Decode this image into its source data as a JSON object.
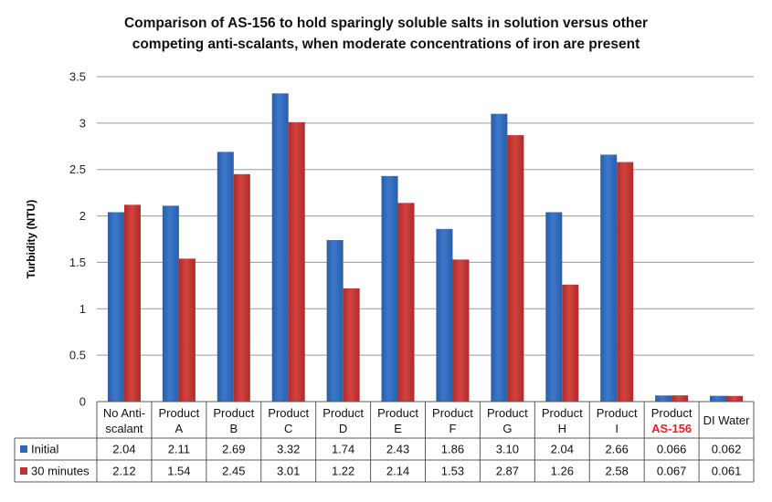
{
  "chart_data": {
    "type": "bar",
    "title_lines": [
      "Comparison of AS-156 to hold sparingly soluble salts in solution versus other",
      "competing anti-scalants, when moderate concentrations of iron are present"
    ],
    "ylabel": "Turbidity (NTU)",
    "ylim": [
      0,
      3.5
    ],
    "yticks": [
      0,
      0.5,
      1,
      1.5,
      2,
      2.5,
      3,
      3.5
    ],
    "ytick_labels": [
      "0",
      "0.5",
      "1",
      "1.5",
      "2",
      "2.5",
      "3",
      "3.5"
    ],
    "grid": true,
    "legend": "data-table",
    "categories": [
      {
        "line1": "No Anti-",
        "line2": "scalant"
      },
      {
        "line1": "Product",
        "line2": "A"
      },
      {
        "line1": "Product",
        "line2": "B"
      },
      {
        "line1": "Product",
        "line2": "C"
      },
      {
        "line1": "Product",
        "line2": "D"
      },
      {
        "line1": "Product",
        "line2": "E"
      },
      {
        "line1": "Product",
        "line2": "F"
      },
      {
        "line1": "Product",
        "line2": "G"
      },
      {
        "line1": "Product",
        "line2": "H"
      },
      {
        "line1": "Product",
        "line2": "I"
      },
      {
        "line1": "Product",
        "line2": "AS-156",
        "highlight": true
      },
      {
        "line1": "DI Water",
        "line2": ""
      }
    ],
    "series": [
      {
        "name": "Initial",
        "color": "#2e67b8",
        "values": [
          2.04,
          2.11,
          2.69,
          3.32,
          1.74,
          2.43,
          1.86,
          3.1,
          2.04,
          2.66,
          0.066,
          0.062
        ],
        "labels": [
          "2.04",
          "2.11",
          "2.69",
          "3.32",
          "1.74",
          "2.43",
          "1.86",
          "3.10",
          "2.04",
          "2.66",
          "0.066",
          "0.062"
        ]
      },
      {
        "name": "30 minutes",
        "color": "#c0302e",
        "values": [
          2.12,
          1.54,
          2.45,
          3.01,
          1.22,
          2.14,
          1.53,
          2.87,
          1.26,
          2.58,
          0.067,
          0.061
        ],
        "labels": [
          "2.12",
          "1.54",
          "2.45",
          "3.01",
          "1.22",
          "2.14",
          "1.53",
          "2.87",
          "1.26",
          "2.58",
          "0.067",
          "0.061"
        ]
      }
    ]
  }
}
